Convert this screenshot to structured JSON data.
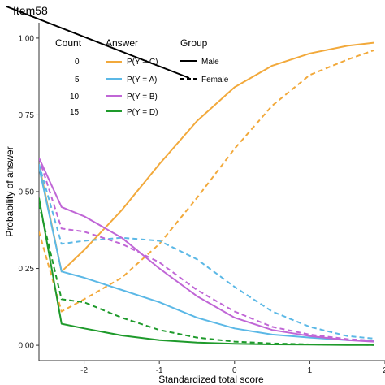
{
  "chart_data": {
    "type": "line",
    "title": "Item58",
    "xlabel": "Standardized total score",
    "ylabel": "Probability of answer",
    "xlim": [
      -2.6,
      2.0
    ],
    "ylim": [
      -0.05,
      1.05
    ],
    "x_ticks": [
      -2,
      -1,
      0,
      1,
      2
    ],
    "y_ticks": [
      0.0,
      0.25,
      0.5,
      0.75,
      1.0
    ],
    "x_tick_labels": [
      "-2",
      "-1",
      "0",
      "1",
      "2"
    ],
    "y_tick_labels": [
      "0.00",
      "0.25",
      "0.50",
      "0.75",
      "1.00"
    ],
    "grid": false,
    "legend": {
      "placement": "top-left",
      "count_title": "Count",
      "counts": [
        "0",
        "5",
        "10",
        "15"
      ],
      "answer_title": "Answer",
      "answers": [
        "P(Y = C)",
        "P(Y = A)",
        "P(Y = B)",
        "P(Y = D)"
      ],
      "group_title": "Group",
      "groups": [
        "Male",
        "Female"
      ]
    },
    "colors": {
      "P(Y = C)": "#F2A93B",
      "P(Y = A)": "#5BB8E6",
      "P(Y = B)": "#C066D6",
      "P(Y = D)": "#1E9A2B"
    },
    "series": [
      {
        "name": "P(Y = C)",
        "group": "Male",
        "x": [
          -2.6,
          -2.3,
          -2.0,
          -1.5,
          -1.0,
          -0.5,
          0.0,
          0.5,
          1.0,
          1.5,
          1.85
        ],
        "y": [
          0.59,
          0.24,
          0.31,
          0.44,
          0.59,
          0.73,
          0.84,
          0.91,
          0.95,
          0.975,
          0.985
        ]
      },
      {
        "name": "P(Y = C)",
        "group": "Female",
        "x": [
          -2.6,
          -2.3,
          -2.0,
          -1.5,
          -1.0,
          -0.5,
          0.0,
          0.5,
          1.0,
          1.5,
          1.85
        ],
        "y": [
          0.37,
          0.11,
          0.15,
          0.22,
          0.33,
          0.48,
          0.64,
          0.78,
          0.88,
          0.93,
          0.96
        ]
      },
      {
        "name": "P(Y = A)",
        "group": "Male",
        "x": [
          -2.6,
          -2.3,
          -2.0,
          -1.5,
          -1.0,
          -0.5,
          0.0,
          0.5,
          1.0,
          1.5,
          1.85
        ],
        "y": [
          0.58,
          0.24,
          0.22,
          0.18,
          0.14,
          0.09,
          0.055,
          0.035,
          0.025,
          0.017,
          0.014
        ]
      },
      {
        "name": "P(Y = A)",
        "group": "Female",
        "x": [
          -2.6,
          -2.3,
          -2.0,
          -1.5,
          -1.0,
          -0.5,
          0.0,
          0.5,
          1.0,
          1.5,
          1.85
        ],
        "y": [
          0.59,
          0.33,
          0.34,
          0.35,
          0.34,
          0.28,
          0.19,
          0.11,
          0.06,
          0.03,
          0.022
        ]
      },
      {
        "name": "P(Y = B)",
        "group": "Male",
        "x": [
          -2.6,
          -2.3,
          -2.0,
          -1.5,
          -1.0,
          -0.5,
          0.0,
          0.5,
          1.0,
          1.5,
          1.85
        ],
        "y": [
          0.61,
          0.45,
          0.42,
          0.35,
          0.25,
          0.16,
          0.09,
          0.05,
          0.03,
          0.017,
          0.012
        ]
      },
      {
        "name": "P(Y = B)",
        "group": "Female",
        "x": [
          -2.6,
          -2.3,
          -2.0,
          -1.5,
          -1.0,
          -0.5,
          0.0,
          0.5,
          1.0,
          1.5,
          1.85
        ],
        "y": [
          0.61,
          0.38,
          0.37,
          0.33,
          0.27,
          0.18,
          0.11,
          0.06,
          0.035,
          0.02,
          0.015
        ]
      },
      {
        "name": "P(Y = D)",
        "group": "Male",
        "x": [
          -2.6,
          -2.3,
          -2.0,
          -1.5,
          -1.0,
          -0.5,
          0.0,
          0.5,
          1.0,
          1.5,
          1.85
        ],
        "y": [
          0.48,
          0.07,
          0.055,
          0.032,
          0.017,
          0.009,
          0.005,
          0.003,
          0.002,
          0.001,
          0.001
        ]
      },
      {
        "name": "P(Y = D)",
        "group": "Female",
        "x": [
          -2.6,
          -2.3,
          -2.0,
          -1.5,
          -1.0,
          -0.5,
          0.0,
          0.5,
          1.0,
          1.5,
          1.85
        ],
        "y": [
          0.46,
          0.15,
          0.14,
          0.09,
          0.05,
          0.025,
          0.012,
          0.006,
          0.003,
          0.002,
          0.001
        ]
      }
    ]
  }
}
